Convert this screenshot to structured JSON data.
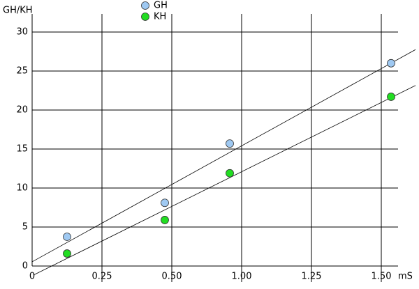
{
  "chart_data": {
    "type": "scatter",
    "y_label": "GH/KH",
    "x_label": "mS",
    "series": [
      {
        "name": "GH",
        "color": "#9fc9f2",
        "x": [
          0.125,
          0.475,
          0.915,
          1.535
        ],
        "values": [
          3.75,
          8.1,
          15.7,
          26.0
        ]
      },
      {
        "name": "KH",
        "color": "#22dd22",
        "x": [
          0.125,
          0.475,
          0.915,
          1.535
        ],
        "values": [
          1.6,
          5.9,
          11.9,
          21.7
        ]
      }
    ],
    "xlim": [
      0,
      1.56
    ],
    "ylim": [
      0,
      30
    ],
    "xticks": [
      0,
      0.25,
      {
        "value": 0.5,
        "label": "0.50"
      },
      {
        "value": 1,
        "label": "1.00"
      },
      1.25,
      {
        "value": 1.5,
        "label": "1.50"
      }
    ],
    "yticks": [
      0,
      5,
      10,
      15,
      20,
      25,
      30
    ],
    "grid": true,
    "trend_lines": true
  }
}
